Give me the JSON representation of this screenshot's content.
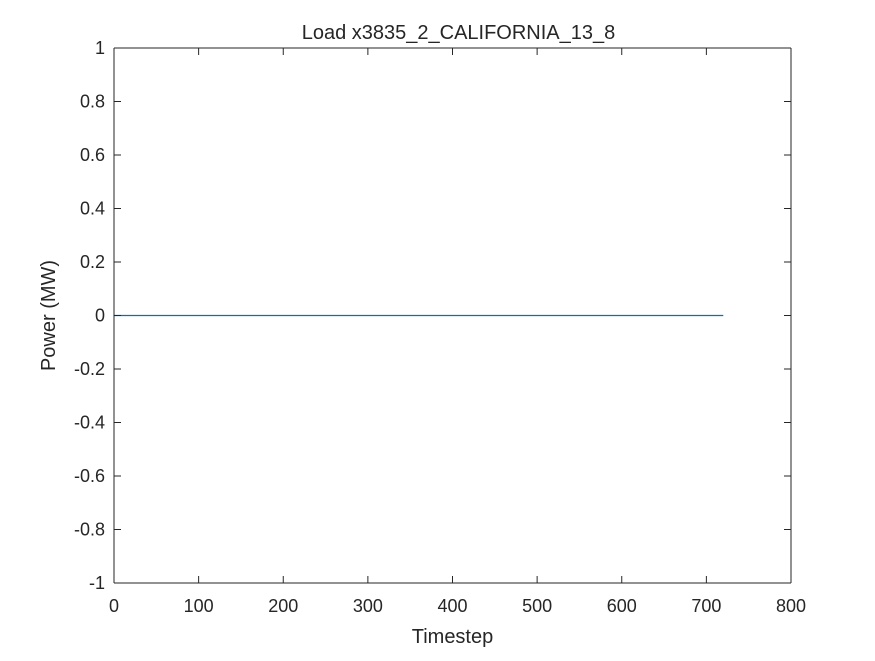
{
  "chart_data": {
    "type": "line",
    "title": "Load x3835_2_CALIFORNIA_13_8",
    "xlabel": "Timestep",
    "ylabel": "Power (MW)",
    "xlim": [
      0,
      800
    ],
    "ylim": [
      -1,
      1
    ],
    "xticks": [
      0,
      100,
      200,
      300,
      400,
      500,
      600,
      700,
      800
    ],
    "xtick_labels": [
      "0",
      "100",
      "200",
      "300",
      "400",
      "500",
      "600",
      "700",
      "800"
    ],
    "yticks": [
      1,
      0.8,
      0.6,
      0.4,
      0.2,
      0,
      -0.2,
      -0.4,
      -0.6,
      -0.8,
      -1
    ],
    "ytick_labels": [
      "1",
      "0.8",
      "0.6",
      "0.4",
      "0.2",
      "0",
      "-0.2",
      "-0.4",
      "-0.6",
      "-0.8",
      "-1"
    ],
    "grid": false,
    "series": [
      {
        "color": "#0072bd",
        "x": [
          0,
          720
        ],
        "y": [
          0,
          0
        ]
      }
    ]
  }
}
